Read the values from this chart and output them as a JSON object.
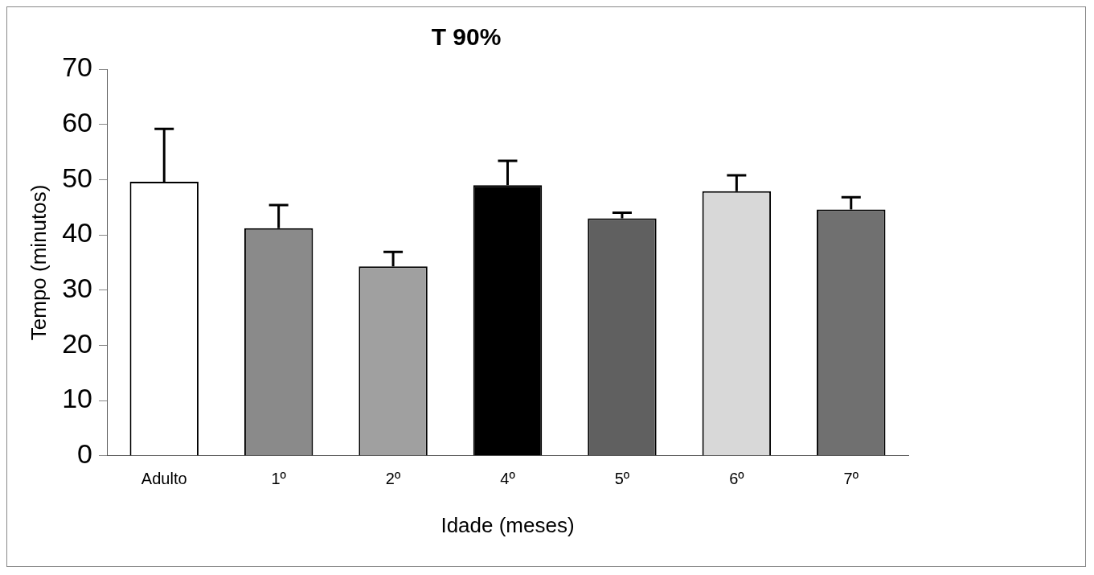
{
  "chart_data": {
    "type": "bar",
    "title": "T 90%",
    "xlabel": "Idade (meses)",
    "ylabel": "Tempo (minutos)",
    "categories": [
      "Adulto",
      "1º",
      "2º",
      "4º",
      "5º",
      "6º",
      "7º"
    ],
    "values": [
      49.6,
      41.2,
      34.3,
      49.0,
      43.0,
      47.9,
      44.6
    ],
    "errors": [
      [
        49.6,
        59.2
      ],
      [
        41.2,
        45.4
      ],
      [
        34.3,
        36.9
      ],
      [
        49.0,
        53.4
      ],
      [
        43.0,
        44.0
      ],
      [
        47.9,
        50.8
      ],
      [
        44.6,
        46.8
      ]
    ],
    "colors": [
      "#ffffff",
      "#8a8a8a",
      "#a0a0a0",
      "#000000",
      "#606060",
      "#d8d8d8",
      "#707070"
    ],
    "ylim": [
      0,
      70
    ],
    "yticks": [
      0,
      10,
      20,
      30,
      40,
      50,
      60,
      70
    ],
    "grid": false,
    "legend": false
  }
}
